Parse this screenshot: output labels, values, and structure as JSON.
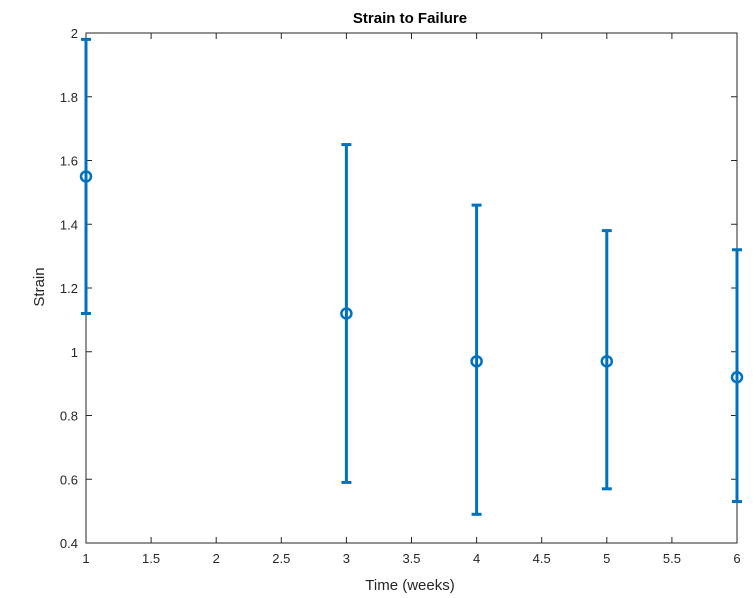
{
  "chart_data": {
    "type": "scatter",
    "title": "Strain to Failure",
    "xlabel": "Time (weeks)",
    "ylabel": "Strain",
    "xlim": [
      1,
      6
    ],
    "ylim": [
      0.4,
      2
    ],
    "xticks": [
      1,
      1.5,
      2,
      2.5,
      3,
      3.5,
      4,
      4.5,
      5,
      5.5,
      6
    ],
    "xtick_labels": [
      "1",
      "1.5",
      "2",
      "2.5",
      "3",
      "3.5",
      "4",
      "4.5",
      "5",
      "5.5",
      "6"
    ],
    "yticks": [
      0.4,
      0.6,
      0.8,
      1,
      1.2,
      1.4,
      1.6,
      1.8,
      2
    ],
    "ytick_labels": [
      "0.4",
      "0.6",
      "0.8",
      "1",
      "1.2",
      "1.4",
      "1.6",
      "1.8",
      "2"
    ],
    "grid": false,
    "color": "#0072BD",
    "points": [
      {
        "x": 1,
        "y": 1.55,
        "lower": 1.12,
        "upper": 1.98
      },
      {
        "x": 3,
        "y": 1.12,
        "lower": 0.59,
        "upper": 1.65
      },
      {
        "x": 4,
        "y": 0.97,
        "lower": 0.49,
        "upper": 1.46
      },
      {
        "x": 5,
        "y": 0.97,
        "lower": 0.57,
        "upper": 1.38
      },
      {
        "x": 6,
        "y": 0.92,
        "lower": 0.53,
        "upper": 1.32
      }
    ]
  }
}
